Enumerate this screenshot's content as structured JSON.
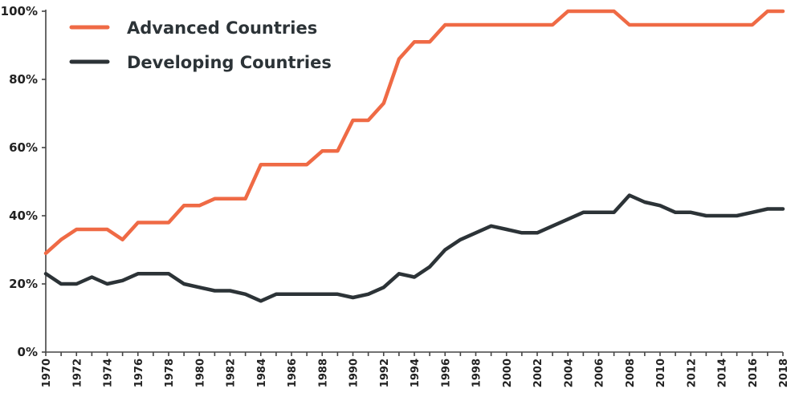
{
  "chart_data": {
    "type": "line",
    "x": [
      1970,
      1971,
      1972,
      1973,
      1974,
      1975,
      1976,
      1977,
      1978,
      1979,
      1980,
      1981,
      1982,
      1983,
      1984,
      1985,
      1986,
      1987,
      1988,
      1989,
      1990,
      1991,
      1992,
      1993,
      1994,
      1995,
      1996,
      1997,
      1998,
      1999,
      2000,
      2001,
      2002,
      2003,
      2004,
      2005,
      2006,
      2007,
      2008,
      2009,
      2010,
      2011,
      2012,
      2013,
      2014,
      2015,
      2016,
      2017,
      2018
    ],
    "x_tick_labels": [
      "1970",
      "1972",
      "1974",
      "1976",
      "1978",
      "1980",
      "1982",
      "1984",
      "1986",
      "1988",
      "1990",
      "1992",
      "1994",
      "1996",
      "1998",
      "2000",
      "2002",
      "2004",
      "2006",
      "2008",
      "2010",
      "2012",
      "2014",
      "2016",
      "2018"
    ],
    "y_tick_labels": [
      "0%",
      "20%",
      "40%",
      "60%",
      "80%",
      "100%"
    ],
    "ylim": [
      0,
      100
    ],
    "xlim": [
      1970,
      2018
    ],
    "grid": false,
    "legend_position": "top-left",
    "series": [
      {
        "name": "Advanced Countries",
        "color": "#ef6a45",
        "values": [
          29,
          33,
          36,
          36,
          36,
          33,
          38,
          38,
          38,
          43,
          43,
          45,
          45,
          45,
          55,
          55,
          55,
          55,
          59,
          59,
          68,
          68,
          73,
          86,
          91,
          91,
          96,
          96,
          96,
          96,
          96,
          96,
          96,
          96,
          100,
          100,
          100,
          100,
          96,
          96,
          96,
          96,
          96,
          96,
          96,
          96,
          96,
          100,
          100
        ]
      },
      {
        "name": "Developing Countries",
        "color": "#2c3337",
        "values": [
          23,
          20,
          20,
          22,
          20,
          21,
          23,
          23,
          23,
          20,
          19,
          18,
          18,
          17,
          15,
          17,
          17,
          17,
          17,
          17,
          16,
          17,
          19,
          23,
          22,
          25,
          30,
          33,
          35,
          37,
          36,
          35,
          35,
          37,
          39,
          41,
          41,
          41,
          46,
          44,
          43,
          41,
          41,
          40,
          40,
          40,
          41,
          42,
          42
        ]
      }
    ]
  }
}
